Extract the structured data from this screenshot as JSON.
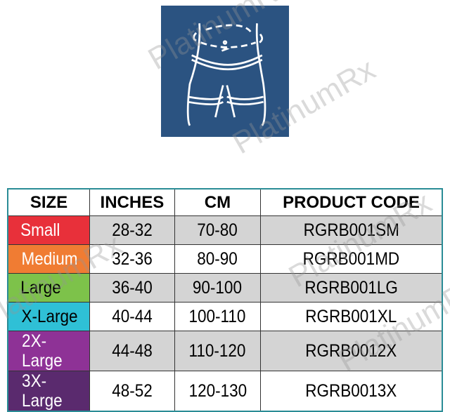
{
  "watermark": "PlatinumRx",
  "illustration": {
    "icon": "waist-measurement-figure-icon",
    "background": "#2b5381"
  },
  "table": {
    "headers": [
      "SIZE",
      "INCHES",
      "CM",
      "PRODUCT CODE"
    ],
    "rows": [
      {
        "size": "Small",
        "inches": "28-32",
        "cm": "70-80",
        "code": "RGRB001SM",
        "color": "#e8303a",
        "text_color": "#ffffff"
      },
      {
        "size": "Medium",
        "inches": "32-36",
        "cm": "80-90",
        "code": "RGRB001MD",
        "color": "#f07c33",
        "text_color": "#ffffff"
      },
      {
        "size": "Large",
        "inches": "36-40",
        "cm": "90-100",
        "code": "RGRB001LG",
        "color": "#7dc24a",
        "text_color": "#000000"
      },
      {
        "size": "X-Large",
        "inches": "40-44",
        "cm": "100-110",
        "code": "RGRB001XL",
        "color": "#2fc0d6",
        "text_color": "#000000"
      },
      {
        "size": "2X-Large",
        "inches": "44-48",
        "cm": "110-120",
        "code": "RGRB0012X",
        "color": "#8e3296",
        "text_color": "#ffffff"
      },
      {
        "size": "3X-Large",
        "inches": "48-52",
        "cm": "120-130",
        "code": "RGRB0013X",
        "color": "#5a2a6e",
        "text_color": "#ffffff"
      }
    ]
  }
}
